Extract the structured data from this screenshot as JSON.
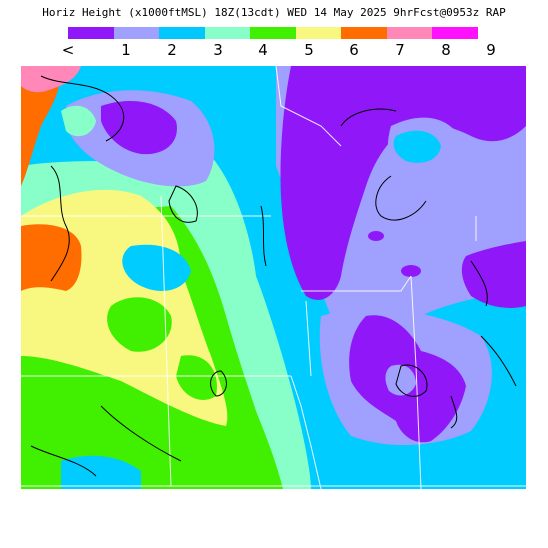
{
  "header": {
    "title": "Horiz Height (x1000ftMSL) 18Z(13cdt) WED 14 May 2025 9hrFcst@0953z RAP"
  },
  "legend": {
    "colors": [
      "#9018f8",
      "#a0a0ff",
      "#00c8ff",
      "#88ffc8",
      "#40f000",
      "#f8f880",
      "#ff6c00",
      "#ff88b8",
      "#ff10ff"
    ],
    "tick_labels": [
      "<",
      "1",
      "2",
      "3",
      "4",
      "5",
      "6",
      "7",
      "8",
      "9"
    ]
  },
  "map": {
    "description_colors": {
      "purple": "#9018f8",
      "lavender": "#a0a0ff",
      "cyan": "#00ccff",
      "mint": "#88ffc8",
      "green": "#40f000",
      "yellow": "#f8f880",
      "orange": "#ff6c00",
      "pink": "#ff88b8",
      "magenta": "#ff10ff"
    }
  }
}
